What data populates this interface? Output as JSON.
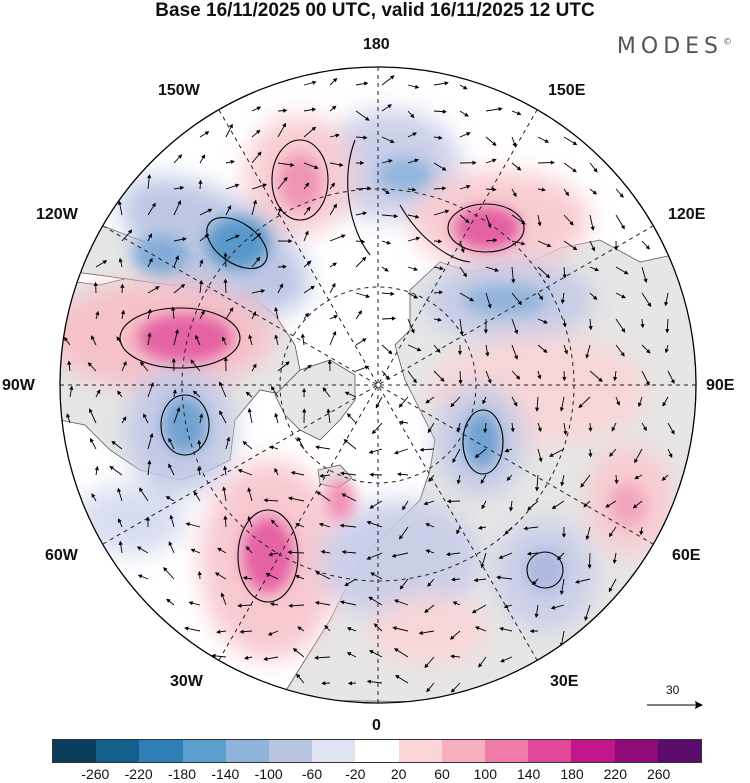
{
  "header": {
    "title": "Base 16/11/2025 00 UTC, valid 16/11/2025 12 UTC",
    "brand": "MODES",
    "brand_mark": "©"
  },
  "map": {
    "projection": "north-polar-stereographic",
    "longitude_labels": [
      "180",
      "150E",
      "120E",
      "90E",
      "60E",
      "30E",
      "0",
      "30W",
      "60W",
      "90W",
      "120W",
      "150W"
    ],
    "colors": {
      "land": "#e6e6e6",
      "ocean": "#ffffff",
      "coast": "#555555",
      "grid": "#222222",
      "arrow": "#000000",
      "contour": "#000000"
    }
  },
  "wind_scale": {
    "value": "30"
  },
  "colorbar": {
    "colors": [
      "#0b3d5c",
      "#155f8c",
      "#2f7fb5",
      "#5a9fd0",
      "#8fb3db",
      "#b9c4e3",
      "#dfe3f2",
      "#ffffff",
      "#fbd5d7",
      "#f7aebe",
      "#f07ba8",
      "#e2489a",
      "#c0188a",
      "#8e0a78",
      "#5c0a6b"
    ],
    "labels": [
      "-260",
      "-220",
      "-180",
      "-140",
      "-100",
      "-60",
      "-20",
      "20",
      "60",
      "100",
      "140",
      "180",
      "220",
      "260"
    ]
  }
}
